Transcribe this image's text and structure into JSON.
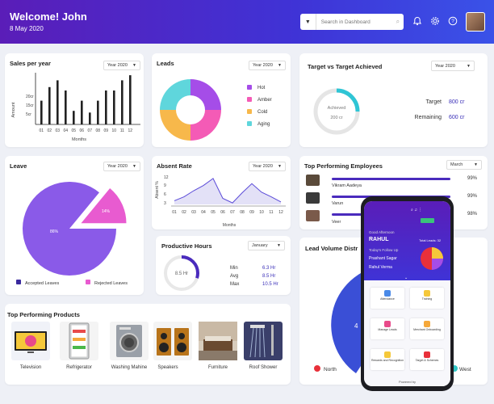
{
  "header": {
    "title": "Welcome! John",
    "date": "8 May 2020",
    "search_placeholder": "Search in Dashboard"
  },
  "sales": {
    "title": "Sales per year",
    "select": "Year 2020",
    "ylabel": "Amount",
    "xlabel": "Months",
    "yticks": [
      "20cr",
      "15cr",
      "5cr"
    ],
    "chart_data": {
      "type": "bar",
      "categories": [
        "01",
        "02",
        "03",
        "04",
        "05",
        "06",
        "07",
        "08",
        "09",
        "10",
        "11",
        "12"
      ],
      "values": [
        14,
        22,
        26,
        20,
        8,
        14,
        7,
        14,
        20,
        20,
        26,
        29
      ],
      "ylabel": "Amount",
      "xlabel": "Months"
    }
  },
  "leads": {
    "title": "Leads",
    "select": "Year 2020",
    "legend": [
      {
        "label": "Hot",
        "color": "#a54de8"
      },
      {
        "label": "Amber",
        "color": "#f45bb6"
      },
      {
        "label": "Cold",
        "color": "#f7b84b"
      },
      {
        "label": "Aging",
        "color": "#5fd6dc"
      }
    ],
    "chart_data": {
      "type": "pie",
      "categories": [
        "Hot",
        "Amber",
        "Cold",
        "Aging"
      ],
      "values": [
        25,
        25,
        25,
        25
      ]
    }
  },
  "target": {
    "title": "Target vs Target Achieved",
    "select": "Year 2020",
    "achieved_label": "Achieved",
    "achieved_value": "200 cr",
    "target_label": "Target",
    "target_value": "800 cr",
    "remaining_label": "Remaining",
    "remaining_value": "600 cr",
    "achieved_fraction": 0.25
  },
  "leave": {
    "title": "Leave",
    "select": "Year 2020",
    "accepted_pct": "86%",
    "rejected_pct": "14%",
    "legend": [
      {
        "label": "Accepted Leaves",
        "color": "#3a2a9e"
      },
      {
        "label": "Rejected Leaves",
        "color": "#e85bd0"
      }
    ],
    "chart_data": {
      "type": "pie",
      "categories": [
        "Accepted Leaves",
        "Rejected Leaves"
      ],
      "values": [
        86,
        14
      ]
    }
  },
  "absent": {
    "title": "Absent Rate",
    "select": "Year 2020",
    "ylabel": "Absent %",
    "xlabel": "Months",
    "yticks": [
      "12",
      "9",
      "6",
      "3"
    ],
    "chart_data": {
      "type": "area",
      "x": [
        "01",
        "02",
        "03",
        "04",
        "05",
        "06",
        "07",
        "08",
        "09",
        "10",
        "11",
        "12"
      ],
      "y": [
        4.2,
        5.5,
        7.5,
        9.2,
        11.5,
        5.0,
        3.5,
        6.8,
        9.8,
        7.0,
        5.5,
        3.8
      ],
      "ylim": [
        3,
        12
      ],
      "xlabel": "Months",
      "ylabel": "Absent %"
    }
  },
  "productive": {
    "title": "Productive Hours",
    "select": "January",
    "center": "8.5 Hr",
    "min_label": "Min",
    "min_value": "6.3 Hr",
    "avg_label": "Avg",
    "avg_value": "8.5 Hr",
    "max_label": "Max",
    "max_value": "10.5 Hr",
    "fraction": 0.3
  },
  "employees": {
    "title": "Top Performing Employees",
    "select": "March",
    "rows": [
      {
        "name": "Vikram Aadeya",
        "pct": "99%",
        "value": 0.99
      },
      {
        "name": "Varun",
        "pct": "99%",
        "value": 0.99
      },
      {
        "name": "Veer",
        "pct": "98%",
        "value": 0.98
      }
    ]
  },
  "products": {
    "title": "Top Performing Products",
    "items": [
      "Television",
      "Refrigerator",
      "Washing Mahine",
      "Speakers",
      "Furniture",
      "Roof Shower"
    ]
  },
  "volume": {
    "title": "Lead Volume Distr",
    "percent_label": "4",
    "legend": [
      {
        "label": "North",
        "color": "#e8303a"
      },
      {
        "label": "West",
        "color": "#2fc5c5"
      }
    ]
  },
  "phone": {
    "greeting": "Good Afternoon",
    "name": "RAHUL",
    "total_leads": "Total Leads: 32",
    "follow_up": "Today's Follow Up",
    "follow1": "Prashant Sagar",
    "follow2": "Rahul Verma",
    "tiles": [
      "Attendance",
      "Training",
      "Manage Leads",
      "Merchant Onboarding",
      "Rewards and Recognition",
      "Target & Schemes"
    ],
    "powered": "Powered by"
  }
}
